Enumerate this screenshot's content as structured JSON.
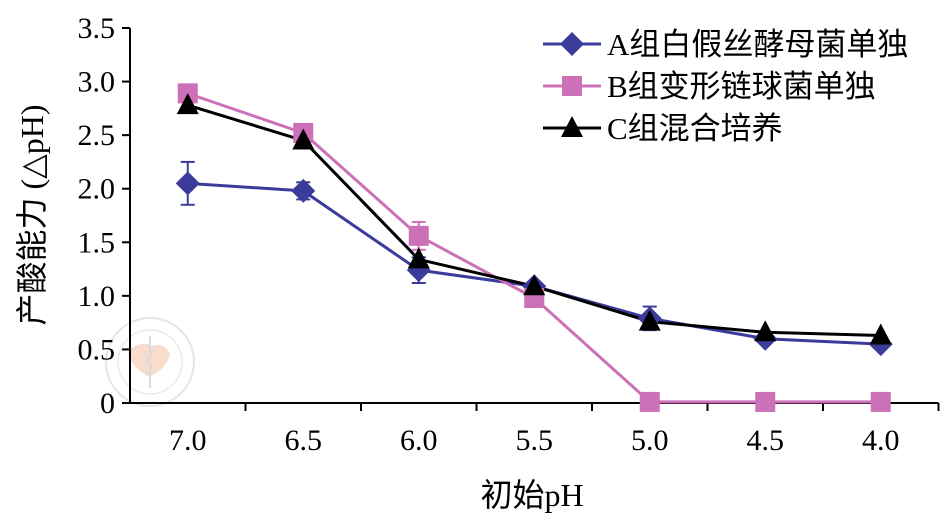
{
  "chart_data": {
    "type": "line",
    "title": "",
    "xlabel": "初始pH",
    "ylabel": "产酸能力 (△pH)",
    "categories": [
      "7.0",
      "6.5",
      "6.0",
      "5.5",
      "5.0",
      "4.5",
      "4.0"
    ],
    "ylim": [
      0,
      3.5
    ],
    "yticks": [
      0,
      0.5,
      1.0,
      1.5,
      2.0,
      2.5,
      3.0,
      3.5
    ],
    "ytick_labels": [
      "0",
      "0.5",
      "1.0",
      "1.5",
      "2.0",
      "2.5",
      "3.0",
      "3.5"
    ],
    "grid": false,
    "legend_position": "top-right",
    "series": [
      {
        "name": "A组白假丝酵母菌单独",
        "marker": "diamond",
        "color": "#3b3b9c",
        "values": [
          2.05,
          1.98,
          1.24,
          1.09,
          0.79,
          0.6,
          0.55
        ],
        "error": [
          0.2,
          0.08,
          0.12,
          null,
          0.11,
          null,
          null
        ]
      },
      {
        "name": "B组变形链球菌单独",
        "marker": "square",
        "color": "#cc70b8",
        "values": [
          2.89,
          2.52,
          1.56,
          0.98,
          0.01,
          0.01,
          0.01
        ],
        "error": [
          null,
          null,
          0.13,
          null,
          null,
          null,
          null
        ]
      },
      {
        "name": "C组混合培养",
        "marker": "triangle",
        "color": "#000000",
        "values": [
          2.78,
          2.45,
          1.34,
          1.09,
          0.76,
          0.66,
          0.63
        ],
        "error": [
          null,
          null,
          null,
          null,
          null,
          null,
          null
        ]
      }
    ]
  }
}
